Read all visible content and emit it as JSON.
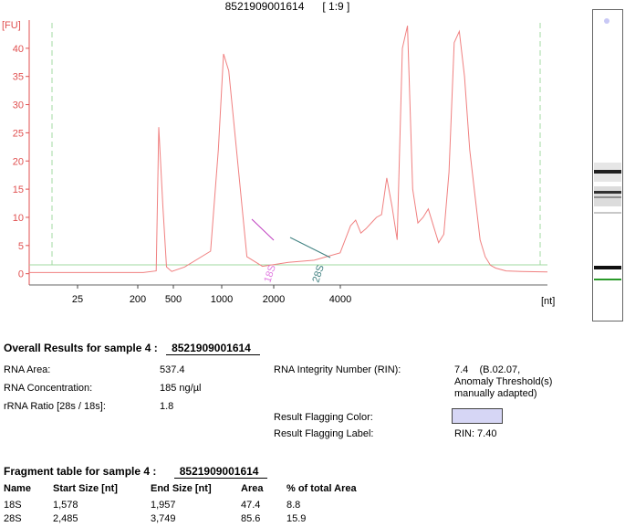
{
  "chart_data": {
    "type": "line",
    "title": "8521909001614      [ 1:9 ]",
    "ylabel": "[FU]",
    "xlabel": "[nt]",
    "ylim": [
      -2,
      45
    ],
    "y_ticks": [
      0,
      5,
      10,
      15,
      20,
      25,
      30,
      35,
      40
    ],
    "x_ticks": [
      "25",
      "200",
      "500",
      "1000",
      "2000",
      "4000"
    ],
    "series": [
      {
        "x": [
          0,
          10,
          22,
          24.5,
          25,
          25.8,
          26.5,
          27.5,
          30,
          35,
          36.5,
          37.5,
          38.5,
          40,
          42,
          45,
          50,
          55,
          60,
          62,
          63,
          64,
          65,
          66,
          67,
          68,
          69,
          70,
          71,
          72,
          73,
          74,
          75,
          76,
          77,
          78,
          79,
          80,
          81,
          82,
          83,
          84,
          85,
          86,
          87,
          88,
          89,
          90,
          92,
          95,
          100
        ],
        "y": [
          0.2,
          0.2,
          0.2,
          0.5,
          26,
          12,
          1.2,
          0.4,
          1.2,
          4,
          22,
          39,
          36,
          22,
          3,
          1.3,
          2,
          2.4,
          3.7,
          8.5,
          9.5,
          7.2,
          8,
          9,
          10,
          10.5,
          17,
          12,
          6,
          40,
          44,
          15,
          9,
          10,
          11.5,
          8.5,
          5.5,
          7,
          18,
          41,
          43,
          35,
          22,
          14,
          6,
          3,
          1.5,
          1,
          0.5,
          0.4,
          0.3
        ]
      }
    ],
    "annotations": [
      "18S",
      "28S"
    ],
    "gel_lane": {
      "bands": [
        "marker",
        "28S",
        "18S",
        "lower",
        "baseline"
      ]
    }
  },
  "overall": {
    "title": "Overall Results for sample 4  :",
    "sample_id": "8521909001614",
    "rows_left": [
      {
        "label": "RNA Area:",
        "value": "537.4"
      },
      {
        "label": "RNA Concentration:",
        "value": "185 ng/µl"
      },
      {
        "label": "rRNA Ratio [28s / 18s]:",
        "value": "1.8"
      }
    ],
    "rin_label": "RNA Integrity Number (RIN):",
    "rin_value": "7.4    (B.02.07,",
    "rin_note_1": "Anomaly Threshold(s)",
    "rin_note_2": "manually adapted)",
    "flag_color_label": "Result Flagging Color:",
    "flag_color": "#d6d6f5",
    "flag_label_label": "Result Flagging Label:",
    "flag_label_value": "RIN: 7.40"
  },
  "fragments": {
    "title": "Fragment table for sample 4  :",
    "sample_id": "8521909001614",
    "columns": [
      "Name",
      "Start Size [nt]",
      "End Size [nt]",
      "Area",
      "% of total Area"
    ],
    "rows": [
      [
        "18S",
        "1,578",
        "1,957",
        "47.4",
        "8.8"
      ],
      [
        "28S",
        "2,485",
        "3,749",
        "85.6",
        "15.9"
      ]
    ]
  }
}
